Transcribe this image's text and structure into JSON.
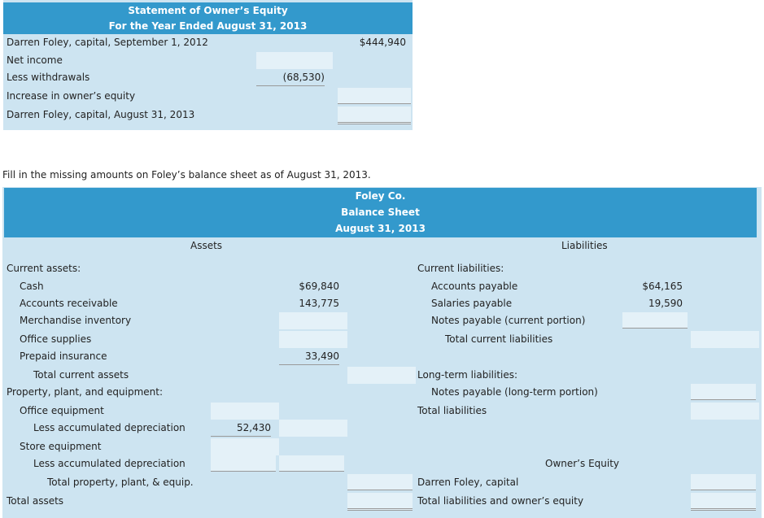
{
  "equity_statement": {
    "title": "Statement of Owner’s Equity",
    "subtitle": "For the Year Ended August 31, 2013",
    "rows": [
      {
        "label": "Darren Foley, capital, September 1, 2012",
        "col2": "$444,940"
      },
      {
        "label": "Net income",
        "col1": ""
      },
      {
        "label": "Less withdrawals",
        "col1": "(68,530)"
      },
      {
        "label": "Increase in owner’s equity",
        "col2": ""
      },
      {
        "label": "Darren Foley, capital, August 31, 2013",
        "col2": ""
      }
    ]
  },
  "instruction": "Fill in the missing amounts on Foley’s balance sheet as of August 31, 2013.",
  "balance_sheet": {
    "company": "Foley Co.",
    "title": "Balance Sheet",
    "date": "August 31, 2013",
    "assets_heading": "Assets",
    "liabilities_heading": "Liabilities",
    "owners_equity_heading": "Owner’s Equity",
    "assets": [
      {
        "label": "Current assets:"
      },
      {
        "label": "Cash",
        "b": "$69,840"
      },
      {
        "label": "Accounts receivable",
        "b": "143,775"
      },
      {
        "label": "Merchandise inventory",
        "b": ""
      },
      {
        "label": "Office supplies",
        "b": ""
      },
      {
        "label": "Prepaid insurance",
        "b": "33,490"
      },
      {
        "label": "Total current assets",
        "c": ""
      },
      {
        "label": "Property, plant, and equipment:"
      },
      {
        "label": "Office equipment",
        "a": ""
      },
      {
        "label": "Less accumulated depreciation",
        "a": "52,430",
        "b": ""
      },
      {
        "label": "Store equipment",
        "a": ""
      },
      {
        "label": "Less accumulated depreciation",
        "a": "",
        "b": ""
      },
      {
        "label": "Total property, plant, & equip.",
        "c": ""
      },
      {
        "label": "Total assets",
        "c": ""
      }
    ],
    "liabilities": [
      {
        "label": "Current liabilities:"
      },
      {
        "label": "Accounts payable",
        "d": "$64,165"
      },
      {
        "label": "Salaries payable",
        "d": "19,590"
      },
      {
        "label": "Notes payable (current portion)",
        "d": ""
      },
      {
        "label": "Total current liabilities",
        "e": ""
      },
      {
        "label": "Long-term liabilities:"
      },
      {
        "label": "Notes payable (long-term portion)",
        "e": ""
      },
      {
        "label": "Total liabilities",
        "e": ""
      },
      {
        "label": "Darren Foley, capital",
        "e": ""
      },
      {
        "label": "Total liabilities and owner’s equity",
        "e": ""
      }
    ]
  }
}
